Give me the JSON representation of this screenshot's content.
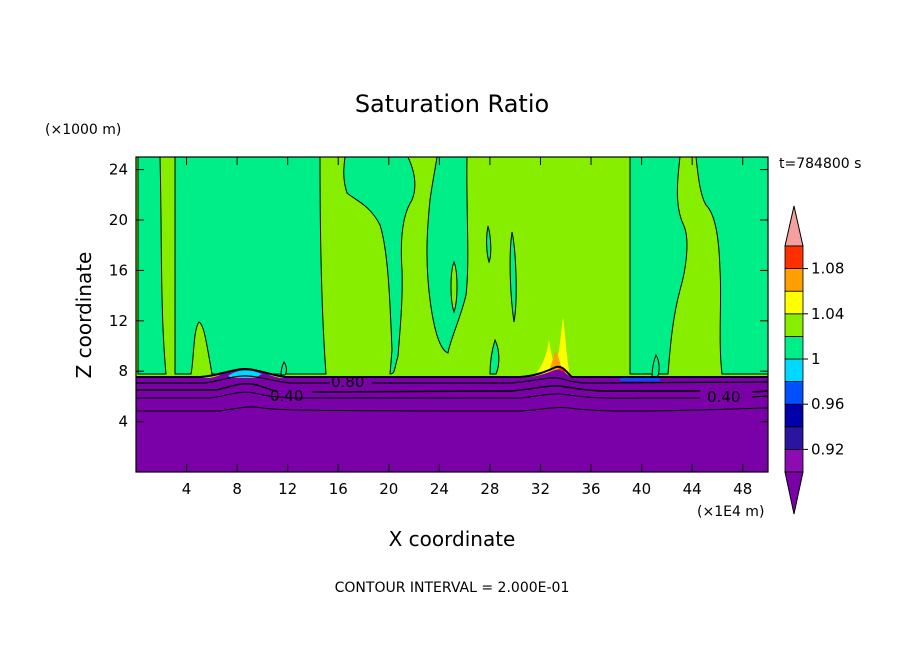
{
  "chart_data": {
    "type": "heatmap",
    "title": "Saturation Ratio",
    "xlabel": "X coordinate",
    "ylabel": "Z coordinate",
    "x_unit": "(×1E4 m)",
    "y_unit": "(×1000 m)",
    "time_label": "t=784800 s",
    "footer": "CONTOUR INTERVAL = 2.000E-01",
    "xlim": [
      0,
      50
    ],
    "ylim": [
      0,
      25
    ],
    "xticks": [
      "4",
      "8",
      "12",
      "16",
      "20",
      "24",
      "28",
      "32",
      "36",
      "40",
      "44",
      "48"
    ],
    "yticks": [
      "4",
      "8",
      "12",
      "16",
      "20",
      "24"
    ],
    "colorbar": {
      "labels": [
        "0.92",
        "0.96",
        "1",
        "1.04",
        "1.08"
      ],
      "levels": [
        0.9,
        0.92,
        0.94,
        0.96,
        0.98,
        1.0,
        1.02,
        1.04,
        1.06,
        1.08,
        1.1
      ],
      "colors": [
        "#8c0cb0",
        "#2b14a0",
        "#0000aa",
        "#0050ff",
        "#00d8ff",
        "#00ee88",
        "#88ee00",
        "#ffff00",
        "#ffa000",
        "#ff3000",
        "#f4a0a0"
      ],
      "under_color": "#7a00a8",
      "over_color": "#f4a0a0"
    },
    "contour_labels": [
      "0.80",
      "0.40",
      "0.40"
    ],
    "regions": {
      "lower_layer": {
        "z_top": 7.6,
        "level": "below 0.90",
        "color": "#7a00a8"
      },
      "upper_background": {
        "level": "1.00 - 1.02",
        "color": "#88ee00"
      },
      "moist_columns": {
        "level": "0.98 - 1.00",
        "color": "#00ee88"
      },
      "supersaturation_peaks": {
        "x": [
          32.4,
          33.4
        ],
        "z_max": 12,
        "levels": [
          "1.02 - 1.06"
        ]
      }
    }
  }
}
